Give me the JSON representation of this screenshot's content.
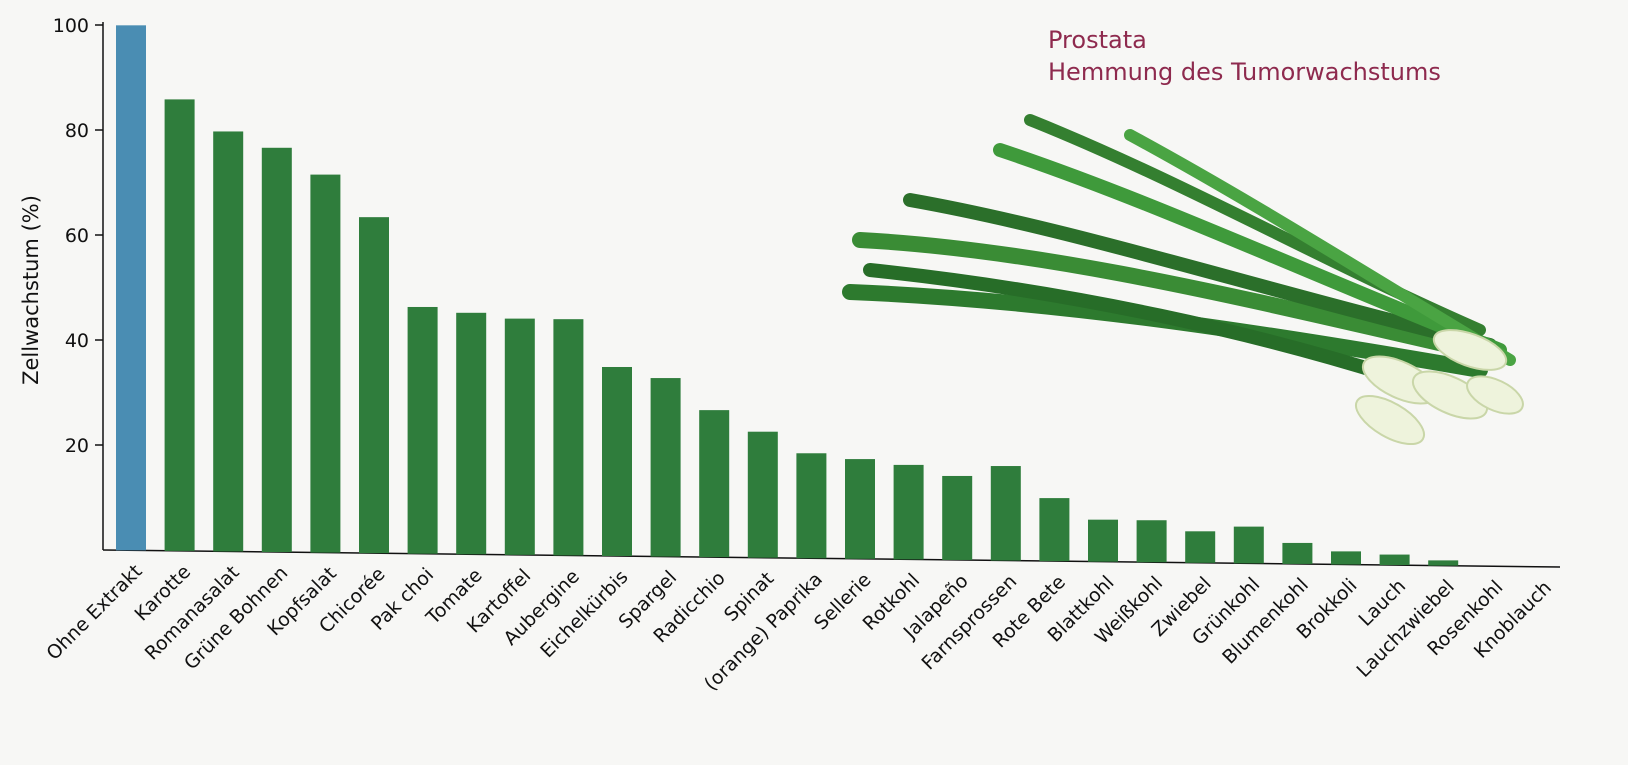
{
  "chart_data": {
    "type": "bar",
    "title": "Prostata",
    "subtitle": "Hemmung des Tumorwachstums",
    "y_label": "Zellwachstum (%)",
    "categories": [
      "Ohne Extrakt",
      "Karotte",
      "Romanasalat",
      "Grüne Bohnen",
      "Kopfsalat",
      "Chicorée",
      "Pak choi",
      "Tomate",
      "Kartoffel",
      "Aubergine",
      "Eichelkürbis",
      "Spargel",
      "Radicchio",
      "Spinat",
      "(orange) Paprika",
      "Sellerie",
      "Rotkohl",
      "Jalapeño",
      "Farnsprossen",
      "Rote Bete",
      "Blattkohl",
      "Weißkohl",
      "Zwiebel",
      "Grünkohl",
      "Blumenkohl",
      "Brokkoli",
      "Lauch",
      "Lauchzwiebel",
      "Rosenkohl",
      "Knoblauch"
    ],
    "values": [
      100,
      86,
      80,
      77,
      72,
      64,
      47,
      46,
      45,
      45,
      36,
      34,
      28,
      24,
      20,
      19,
      18,
      16,
      18,
      12,
      8,
      8,
      6,
      7,
      4,
      2.5,
      2,
      1,
      0,
      0
    ],
    "colors": [
      "#4a8db3",
      "#2f7d3c",
      "#2f7d3c",
      "#2f7d3c",
      "#2f7d3c",
      "#2f7d3c",
      "#2f7d3c",
      "#2f7d3c",
      "#2f7d3c",
      "#2f7d3c",
      "#2f7d3c",
      "#2f7d3c",
      "#2f7d3c",
      "#2f7d3c",
      "#2f7d3c",
      "#2f7d3c",
      "#2f7d3c",
      "#2f7d3c",
      "#2f7d3c",
      "#2f7d3c",
      "#2f7d3c",
      "#2f7d3c",
      "#2f7d3c",
      "#2f7d3c",
      "#2f7d3c",
      "#2f7d3c",
      "#2f7d3c",
      "#2f7d3c",
      "#2f7d3c",
      "#2f7d3c"
    ],
    "ylim": [
      0,
      100
    ],
    "yticks": [
      20,
      40,
      60,
      80,
      100
    ],
    "grid": false
  }
}
